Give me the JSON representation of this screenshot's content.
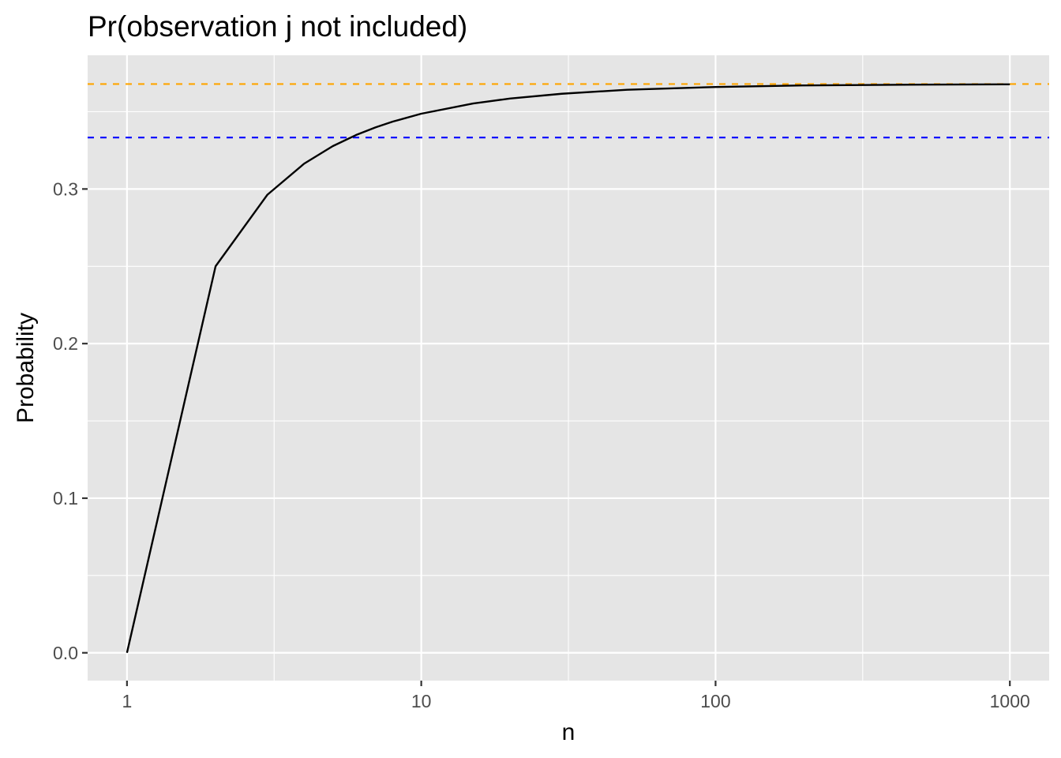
{
  "chart_data": {
    "type": "line",
    "title": "Pr(observation j not included)",
    "xlabel": "n",
    "ylabel": "Probability",
    "x_scale": "log10",
    "xlim": [
      0.735,
      1360
    ],
    "ylim": [
      -0.018,
      0.3865
    ],
    "x_ticks": [
      1,
      10,
      100,
      1000
    ],
    "x_tick_labels": [
      "1",
      "10",
      "100",
      "1000"
    ],
    "y_ticks": [
      0.0,
      0.1,
      0.2,
      0.3
    ],
    "y_tick_labels": [
      "0.0",
      "0.1",
      "0.2",
      "0.3"
    ],
    "grid": true,
    "panel_background": "#e5e5e5",
    "grid_color": "#ffffff",
    "series": [
      {
        "color": "#000000",
        "style": "solid",
        "x": [
          1,
          2,
          3,
          4,
          5,
          6,
          7,
          8,
          10,
          15,
          20,
          30,
          50,
          100,
          200,
          500,
          1000
        ],
        "values": [
          0,
          0.25,
          0.2963,
          0.3164,
          0.3277,
          0.3349,
          0.3399,
          0.3436,
          0.3487,
          0.3553,
          0.3585,
          0.3616,
          0.3642,
          0.366,
          0.367,
          0.3675,
          0.3677
        ]
      }
    ],
    "reference_lines": [
      {
        "y": 0.3679,
        "color": "#ffa500",
        "style": "dashed"
      },
      {
        "y": 0.3333,
        "color": "#0000ff",
        "style": "dashed"
      }
    ]
  }
}
